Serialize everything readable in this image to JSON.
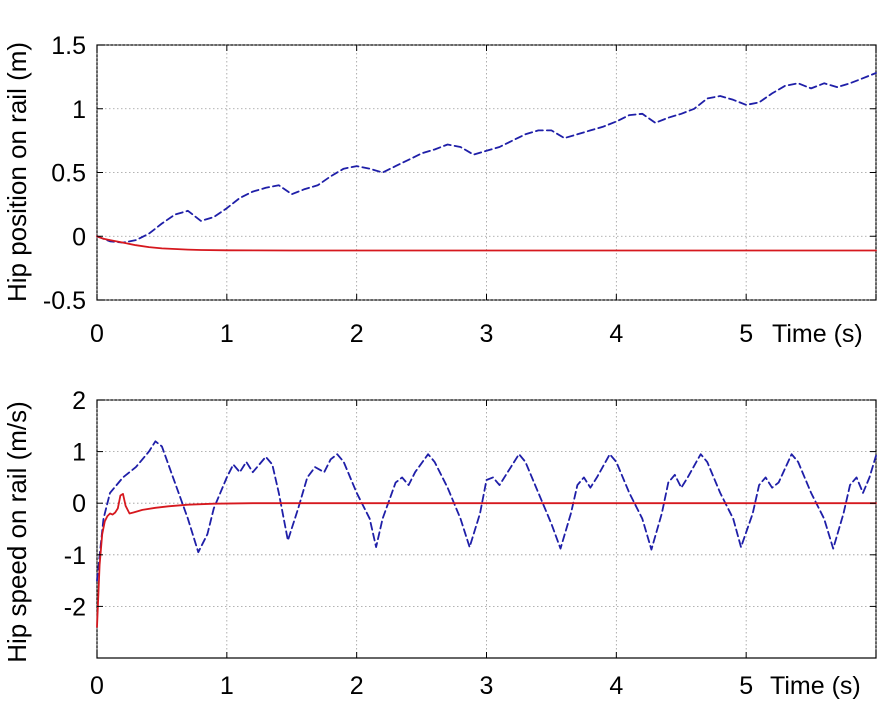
{
  "chart_data": [
    {
      "type": "line",
      "id": "position",
      "title": "",
      "ylabel": "Hip position on rail (m)",
      "xlabel": "Time (s)",
      "xlim": [
        0,
        6
      ],
      "ylim": [
        -0.5,
        1.5
      ],
      "grid": true,
      "xticks": [
        0,
        1,
        2,
        3,
        4,
        5
      ],
      "xtick_labels": [
        "0",
        "1",
        "2",
        "3",
        "4",
        "5"
      ],
      "yticks": [
        -0.5,
        0,
        0.5,
        1,
        1.5
      ],
      "ytick_labels": [
        "-0.5",
        "0",
        "0.5",
        "1",
        "1.5"
      ],
      "series": [
        {
          "color": "#1f1fa8",
          "style": "dashed",
          "points": [
            [
              0,
              0
            ],
            [
              0.1,
              -0.04
            ],
            [
              0.2,
              -0.05
            ],
            [
              0.3,
              -0.03
            ],
            [
              0.4,
              0.02
            ],
            [
              0.5,
              0.1
            ],
            [
              0.6,
              0.17
            ],
            [
              0.7,
              0.2
            ],
            [
              0.8,
              0.12
            ],
            [
              0.9,
              0.15
            ],
            [
              1.0,
              0.22
            ],
            [
              1.1,
              0.3
            ],
            [
              1.2,
              0.35
            ],
            [
              1.3,
              0.38
            ],
            [
              1.4,
              0.4
            ],
            [
              1.5,
              0.33
            ],
            [
              1.6,
              0.37
            ],
            [
              1.7,
              0.4
            ],
            [
              1.8,
              0.47
            ],
            [
              1.9,
              0.53
            ],
            [
              2.0,
              0.55
            ],
            [
              2.1,
              0.53
            ],
            [
              2.2,
              0.5
            ],
            [
              2.3,
              0.55
            ],
            [
              2.4,
              0.6
            ],
            [
              2.5,
              0.65
            ],
            [
              2.6,
              0.68
            ],
            [
              2.7,
              0.72
            ],
            [
              2.8,
              0.7
            ],
            [
              2.9,
              0.64
            ],
            [
              3.0,
              0.67
            ],
            [
              3.1,
              0.7
            ],
            [
              3.2,
              0.75
            ],
            [
              3.3,
              0.8
            ],
            [
              3.4,
              0.83
            ],
            [
              3.5,
              0.83
            ],
            [
              3.6,
              0.77
            ],
            [
              3.7,
              0.8
            ],
            [
              3.8,
              0.83
            ],
            [
              3.9,
              0.86
            ],
            [
              4.0,
              0.9
            ],
            [
              4.1,
              0.95
            ],
            [
              4.2,
              0.96
            ],
            [
              4.3,
              0.89
            ],
            [
              4.4,
              0.93
            ],
            [
              4.5,
              0.96
            ],
            [
              4.6,
              1.0
            ],
            [
              4.7,
              1.08
            ],
            [
              4.8,
              1.1
            ],
            [
              4.9,
              1.07
            ],
            [
              5.0,
              1.03
            ],
            [
              5.1,
              1.05
            ],
            [
              5.2,
              1.12
            ],
            [
              5.3,
              1.18
            ],
            [
              5.4,
              1.2
            ],
            [
              5.5,
              1.16
            ],
            [
              5.6,
              1.2
            ],
            [
              5.7,
              1.17
            ],
            [
              5.8,
              1.2
            ],
            [
              5.9,
              1.24
            ],
            [
              6.0,
              1.28
            ]
          ]
        },
        {
          "color": "#d6181e",
          "style": "solid",
          "points": [
            [
              0,
              0
            ],
            [
              0.05,
              -0.02
            ],
            [
              0.1,
              -0.03
            ],
            [
              0.2,
              -0.05
            ],
            [
              0.3,
              -0.07
            ],
            [
              0.4,
              -0.085
            ],
            [
              0.5,
              -0.095
            ],
            [
              0.6,
              -0.1
            ],
            [
              0.7,
              -0.105
            ],
            [
              0.8,
              -0.108
            ],
            [
              1.0,
              -0.11
            ],
            [
              1.5,
              -0.112
            ],
            [
              2.0,
              -0.112
            ],
            [
              3.0,
              -0.112
            ],
            [
              4.0,
              -0.112
            ],
            [
              5.0,
              -0.112
            ],
            [
              6.0,
              -0.112
            ]
          ]
        }
      ]
    },
    {
      "type": "line",
      "id": "speed",
      "title": "",
      "ylabel": "Hip speed on rail (m/s)",
      "xlabel": "Time (s)",
      "xlim": [
        0,
        6
      ],
      "ylim": [
        -3,
        2
      ],
      "grid": true,
      "xticks": [
        0,
        1,
        2,
        3,
        4,
        5
      ],
      "xtick_labels": [
        "0",
        "1",
        "2",
        "3",
        "4",
        "5"
      ],
      "yticks": [
        -2,
        -1,
        0,
        1,
        2
      ],
      "ytick_labels": [
        "-2",
        "-1",
        "0",
        "1",
        "2"
      ],
      "series": [
        {
          "color": "#1f1fa8",
          "style": "dashed",
          "points": [
            [
              0,
              -1.5
            ],
            [
              0.05,
              -0.3
            ],
            [
              0.1,
              0.2
            ],
            [
              0.2,
              0.5
            ],
            [
              0.3,
              0.7
            ],
            [
              0.4,
              1.0
            ],
            [
              0.45,
              1.2
            ],
            [
              0.5,
              1.1
            ],
            [
              0.6,
              0.4
            ],
            [
              0.7,
              -0.3
            ],
            [
              0.78,
              -0.95
            ],
            [
              0.85,
              -0.6
            ],
            [
              0.9,
              -0.1
            ],
            [
              1.0,
              0.5
            ],
            [
              1.05,
              0.75
            ],
            [
              1.1,
              0.6
            ],
            [
              1.15,
              0.8
            ],
            [
              1.2,
              0.6
            ],
            [
              1.3,
              0.9
            ],
            [
              1.35,
              0.75
            ],
            [
              1.4,
              0.2
            ],
            [
              1.47,
              -0.72
            ],
            [
              1.55,
              -0.1
            ],
            [
              1.62,
              0.5
            ],
            [
              1.68,
              0.7
            ],
            [
              1.75,
              0.6
            ],
            [
              1.8,
              0.85
            ],
            [
              1.85,
              0.95
            ],
            [
              1.9,
              0.8
            ],
            [
              2.0,
              0.2
            ],
            [
              2.1,
              -0.3
            ],
            [
              2.15,
              -0.85
            ],
            [
              2.2,
              -0.3
            ],
            [
              2.3,
              0.4
            ],
            [
              2.35,
              0.5
            ],
            [
              2.4,
              0.35
            ],
            [
              2.45,
              0.6
            ],
            [
              2.55,
              0.95
            ],
            [
              2.6,
              0.8
            ],
            [
              2.7,
              0.3
            ],
            [
              2.8,
              -0.3
            ],
            [
              2.87,
              -0.85
            ],
            [
              2.95,
              -0.2
            ],
            [
              3.0,
              0.45
            ],
            [
              3.05,
              0.5
            ],
            [
              3.1,
              0.35
            ],
            [
              3.15,
              0.55
            ],
            [
              3.25,
              0.95
            ],
            [
              3.3,
              0.8
            ],
            [
              3.4,
              0.2
            ],
            [
              3.5,
              -0.4
            ],
            [
              3.57,
              -0.88
            ],
            [
              3.65,
              -0.2
            ],
            [
              3.7,
              0.35
            ],
            [
              3.75,
              0.5
            ],
            [
              3.8,
              0.3
            ],
            [
              3.85,
              0.5
            ],
            [
              3.95,
              0.95
            ],
            [
              4.0,
              0.8
            ],
            [
              4.1,
              0.2
            ],
            [
              4.2,
              -0.3
            ],
            [
              4.27,
              -0.9
            ],
            [
              4.35,
              -0.2
            ],
            [
              4.4,
              0.4
            ],
            [
              4.45,
              0.55
            ],
            [
              4.5,
              0.3
            ],
            [
              4.55,
              0.5
            ],
            [
              4.65,
              0.95
            ],
            [
              4.7,
              0.8
            ],
            [
              4.8,
              0.2
            ],
            [
              4.9,
              -0.3
            ],
            [
              4.96,
              -0.85
            ],
            [
              5.05,
              -0.2
            ],
            [
              5.1,
              0.35
            ],
            [
              5.15,
              0.5
            ],
            [
              5.2,
              0.3
            ],
            [
              5.25,
              0.4
            ],
            [
              5.35,
              0.95
            ],
            [
              5.4,
              0.8
            ],
            [
              5.5,
              0.2
            ],
            [
              5.6,
              -0.3
            ],
            [
              5.67,
              -0.88
            ],
            [
              5.75,
              -0.2
            ],
            [
              5.8,
              0.35
            ],
            [
              5.85,
              0.5
            ],
            [
              5.9,
              0.2
            ],
            [
              5.95,
              0.5
            ],
            [
              6.0,
              0.92
            ]
          ]
        },
        {
          "color": "#d6181e",
          "style": "solid",
          "points": [
            [
              0,
              -2.4
            ],
            [
              0.02,
              -1.2
            ],
            [
              0.04,
              -0.6
            ],
            [
              0.06,
              -0.35
            ],
            [
              0.08,
              -0.25
            ],
            [
              0.1,
              -0.2
            ],
            [
              0.12,
              -0.22
            ],
            [
              0.14,
              -0.18
            ],
            [
              0.16,
              -0.1
            ],
            [
              0.18,
              0.15
            ],
            [
              0.2,
              0.18
            ],
            [
              0.22,
              -0.05
            ],
            [
              0.25,
              -0.2
            ],
            [
              0.28,
              -0.18
            ],
            [
              0.35,
              -0.13
            ],
            [
              0.45,
              -0.09
            ],
            [
              0.55,
              -0.06
            ],
            [
              0.7,
              -0.03
            ],
            [
              0.9,
              -0.01
            ],
            [
              1.2,
              0
            ],
            [
              2.0,
              0
            ],
            [
              3.0,
              0
            ],
            [
              4.0,
              0
            ],
            [
              5.0,
              0
            ],
            [
              6.0,
              0
            ]
          ]
        }
      ]
    }
  ]
}
